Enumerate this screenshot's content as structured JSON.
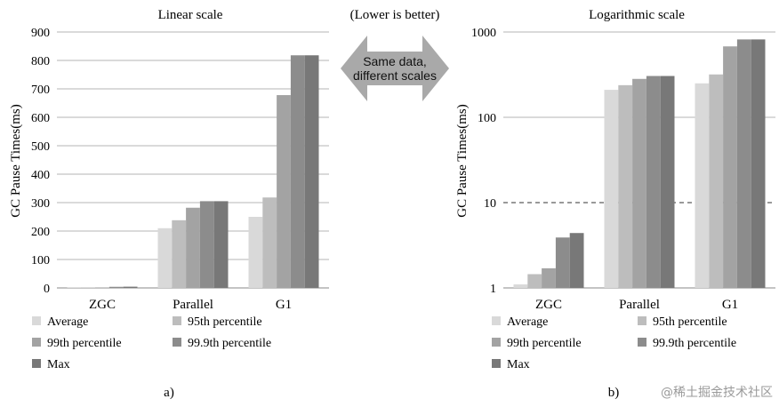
{
  "note_top": "(Lower is better)",
  "arrow_text": [
    "Same data,",
    "different scales"
  ],
  "watermark": "@稀土掘金技术社区",
  "chart_data": [
    {
      "type": "bar",
      "title": "Linear scale",
      "ylabel": "GC Pause Times(ms)",
      "xlabel": "",
      "caption": "a)",
      "scale": "linear",
      "ylim": [
        0,
        900
      ],
      "yticks": [
        "0",
        "100",
        "200",
        "300",
        "400",
        "500",
        "600",
        "700",
        "800",
        "900"
      ],
      "categories": [
        "ZGC",
        "Parallel",
        "G1"
      ],
      "grid": true,
      "legend_position": "bottom",
      "series": [
        {
          "name": "Average",
          "color": "#d9d9d9",
          "values": [
            1.1,
            210,
            250
          ]
        },
        {
          "name": "95th percentile",
          "color": "#bdbdbd",
          "values": [
            1.45,
            238,
            318
          ]
        },
        {
          "name": "99th percentile",
          "color": "#a3a3a3",
          "values": [
            1.7,
            282,
            678
          ]
        },
        {
          "name": "99.9th percentile",
          "color": "#8c8c8c",
          "values": [
            3.9,
            305,
            818
          ]
        },
        {
          "name": "Max",
          "color": "#787878",
          "values": [
            4.4,
            305,
            818
          ]
        }
      ]
    },
    {
      "type": "bar",
      "title": "Logarithmic scale",
      "ylabel": "GC Pause Times(ms)",
      "xlabel": "",
      "caption": "b)",
      "scale": "log",
      "ylim": [
        1,
        1000
      ],
      "yticks": [
        "1",
        "10",
        "100",
        "1000"
      ],
      "categories": [
        "ZGC",
        "Parallel",
        "G1"
      ],
      "grid": true,
      "legend_position": "bottom",
      "series": [
        {
          "name": "Average",
          "color": "#d9d9d9",
          "values": [
            1.1,
            210,
            250
          ]
        },
        {
          "name": "95th percentile",
          "color": "#bdbdbd",
          "values": [
            1.45,
            238,
            318
          ]
        },
        {
          "name": "99th percentile",
          "color": "#a3a3a3",
          "values": [
            1.7,
            282,
            678
          ]
        },
        {
          "name": "99.9th percentile",
          "color": "#8c8c8c",
          "values": [
            3.9,
            305,
            818
          ]
        },
        {
          "name": "Max",
          "color": "#787878",
          "values": [
            4.4,
            305,
            818
          ]
        }
      ]
    }
  ]
}
